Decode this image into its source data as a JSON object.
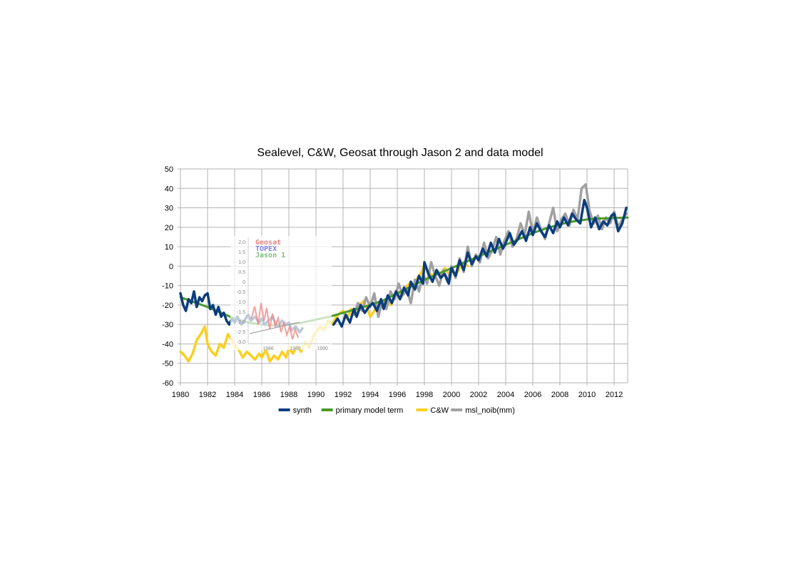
{
  "chart_data": {
    "type": "line",
    "title": "Sealevel, C&W, Geosat through Jason 2 and data model",
    "xlabel": "",
    "ylabel": "",
    "xlim": [
      1980,
      2013
    ],
    "ylim": [
      -60,
      50
    ],
    "x_ticks": [
      "1980",
      "1982",
      "1984",
      "1986",
      "1988",
      "1990",
      "1992",
      "1994",
      "1996",
      "1998",
      "2000",
      "2002",
      "2004",
      "2006",
      "2008",
      "2010",
      "2012"
    ],
    "y_ticks": [
      "50",
      "40",
      "30",
      "20",
      "10",
      "0",
      "-10",
      "-20",
      "-30",
      "-40",
      "-50",
      "-60"
    ],
    "grid": true,
    "legend_position": "bottom",
    "series": [
      {
        "name": "synth",
        "color": "#0b3d7f",
        "x": [
          1980.0,
          1980.2,
          1980.4,
          1980.6,
          1980.8,
          1981.0,
          1981.2,
          1981.4,
          1981.6,
          1981.8,
          1982.0,
          1982.2,
          1982.4,
          1982.6,
          1982.8,
          1983.0,
          1983.2,
          1983.4,
          1983.6,
          1983.8,
          1984.0,
          1984.2,
          1984.5,
          1984.8,
          1985.0,
          1985.2,
          1985.5,
          1985.8,
          1986.0,
          1986.2,
          1986.5,
          1986.8,
          1987.0,
          1987.2,
          1987.5,
          1987.8,
          1988.0,
          1988.2,
          1988.5,
          1988.8,
          1989.0
        ],
        "y": [
          -14,
          -20,
          -23,
          -17,
          -19,
          -13,
          -21,
          -16,
          -18,
          -15,
          -14,
          -22,
          -20,
          -25,
          -21,
          -26,
          -24,
          -28,
          -30,
          -27,
          -29,
          -26,
          -30,
          -27,
          -25,
          -28,
          -26,
          -29,
          -27,
          -30,
          -28,
          -26,
          -29,
          -31,
          -28,
          -30,
          -29,
          -33,
          -31,
          -34,
          -32
        ]
      },
      {
        "name": "synth",
        "color": "#0b3d7f",
        "x": [
          1991.3,
          1991.6,
          1991.9,
          1992.2,
          1992.5,
          1992.8,
          1993.0,
          1993.3,
          1993.6,
          1993.9,
          1994.2,
          1994.5,
          1994.8,
          1995.0,
          1995.3,
          1995.6,
          1995.9,
          1996.2,
          1996.5,
          1996.8,
          1997.0,
          1997.3,
          1997.6,
          1997.9,
          1998.0,
          1998.3,
          1998.6,
          1998.9,
          1999.2,
          1999.5,
          1999.8,
          2000.0,
          2000.3,
          2000.6,
          2000.9,
          2001.2,
          2001.5,
          2001.8,
          2002.0,
          2002.3,
          2002.6,
          2002.9,
          2003.2,
          2003.5,
          2003.8,
          2004.0,
          2004.3,
          2004.6,
          2004.9,
          2005.2,
          2005.5,
          2005.8,
          2006.0,
          2006.3,
          2006.6,
          2006.9,
          2007.2,
          2007.5,
          2007.8,
          2008.0,
          2008.3,
          2008.6,
          2008.9,
          2009.2,
          2009.5,
          2009.8,
          2010.0,
          2010.3,
          2010.6,
          2010.9,
          2011.2,
          2011.5,
          2011.8,
          2012.0,
          2012.3,
          2012.6,
          2012.9
        ],
        "y": [
          -30,
          -27,
          -31,
          -25,
          -29,
          -22,
          -26,
          -20,
          -24,
          -21,
          -19,
          -23,
          -17,
          -22,
          -15,
          -19,
          -13,
          -17,
          -11,
          -15,
          -8,
          -12,
          -5,
          -9,
          2,
          -4,
          -8,
          -2,
          -6,
          -4,
          -9,
          -1,
          -5,
          3,
          -2,
          7,
          1,
          5,
          3,
          9,
          5,
          12,
          7,
          14,
          9,
          12,
          17,
          11,
          14,
          18,
          13,
          20,
          16,
          22,
          18,
          15,
          21,
          17,
          23,
          20,
          25,
          21,
          27,
          24,
          22,
          34,
          30,
          20,
          25,
          19,
          23,
          21,
          26,
          27,
          18,
          22,
          30
        ]
      },
      {
        "name": "primary model term",
        "color": "#4a9a2a",
        "x": [
          1980,
          1981,
          1982,
          1983,
          1984,
          1985,
          1986,
          1987,
          1988,
          1989,
          1990,
          1991,
          1992,
          1993,
          1994,
          1995,
          1996,
          1997,
          1998,
          1999,
          2000,
          2001,
          2002,
          2003,
          2004,
          2005,
          2006,
          2007,
          2008,
          2009,
          2010,
          2011,
          2012,
          2013
        ],
        "y": [
          -16,
          -18.5,
          -21,
          -24,
          -27,
          -29,
          -30,
          -30.5,
          -30,
          -29,
          -27.5,
          -26,
          -24,
          -22,
          -20,
          -17.5,
          -14,
          -10.5,
          -7,
          -4,
          -1,
          2,
          5,
          8,
          11,
          14,
          17,
          19.5,
          21.5,
          23,
          24,
          24.5,
          24.8,
          25
        ]
      },
      {
        "name": "C&W",
        "color": "#fccf20",
        "x": [
          1980.0,
          1980.3,
          1980.6,
          1980.9,
          1981.2,
          1981.5,
          1981.8,
          1982.0,
          1982.3,
          1982.6,
          1982.9,
          1983.2,
          1983.5,
          1983.8,
          1984.0,
          1984.3,
          1984.6,
          1984.9,
          1985.2,
          1985.5,
          1985.8,
          1986.0,
          1986.3,
          1986.6,
          1986.9,
          1987.2,
          1987.5,
          1987.8,
          1988.0,
          1988.3,
          1988.6,
          1988.9,
          1989.2,
          1989.5,
          1989.8,
          1990.0,
          1990.3,
          1990.6,
          1990.9,
          1991.2,
          1991.5,
          1991.8,
          1992.0,
          1992.3,
          1992.6,
          1992.9,
          1993.2,
          1993.5,
          1993.8,
          1994.0,
          1994.3,
          1994.6,
          1994.9,
          1995.2,
          1995.5,
          1995.8,
          1996.0,
          1996.3,
          1996.6,
          1996.9,
          1997.2,
          1997.5,
          1997.8,
          1998.0,
          1998.3,
          1998.6,
          1998.9,
          1999.2,
          1999.5,
          1999.8,
          2000.0,
          2000.3,
          2000.6,
          2000.9,
          2001.2
        ],
        "y": [
          -44,
          -46,
          -49,
          -45,
          -38,
          -35,
          -31,
          -40,
          -44,
          -46,
          -40,
          -42,
          -35,
          -38,
          -41,
          -43,
          -47,
          -44,
          -46,
          -48,
          -45,
          -47,
          -43,
          -49,
          -46,
          -48,
          -44,
          -47,
          -42,
          -45,
          -41,
          -44,
          -39,
          -42,
          -36,
          -34,
          -31,
          -33,
          -28,
          -30,
          -26,
          -24,
          -23,
          -27,
          -22,
          -25,
          -20,
          -18,
          -22,
          -26,
          -23,
          -19,
          -21,
          -17,
          -20,
          -15,
          -13,
          -16,
          -11,
          -9,
          -12,
          -6,
          -3,
          1,
          -3,
          -5,
          -2,
          -4,
          -1,
          -4,
          -2,
          -5,
          -1,
          2,
          0
        ]
      },
      {
        "name": "msl_noib(mm)",
        "color": "#a0a0a0",
        "x": [
          1992.8,
          1993.1,
          1993.4,
          1993.7,
          1994.0,
          1994.3,
          1994.6,
          1994.9,
          1995.2,
          1995.5,
          1995.8,
          1996.1,
          1996.4,
          1996.7,
          1997.0,
          1997.3,
          1997.6,
          1997.9,
          1998.2,
          1998.5,
          1998.8,
          1999.1,
          1999.4,
          1999.7,
          2000.0,
          2000.3,
          2000.6,
          2000.9,
          2001.2,
          2001.5,
          2001.8,
          2002.1,
          2002.4,
          2002.7,
          2003.0,
          2003.3,
          2003.6,
          2003.9,
          2004.2,
          2004.5,
          2004.8,
          2005.1,
          2005.4,
          2005.7,
          2006.0,
          2006.3,
          2006.6,
          2006.9,
          2007.2,
          2007.5,
          2007.8,
          2008.1,
          2008.4,
          2008.7,
          2009.0,
          2009.3,
          2009.6,
          2009.9,
          2010.2,
          2010.5,
          2010.8,
          2011.1,
          2011.4,
          2011.7,
          2012.0,
          2012.3,
          2012.6,
          2012.9
        ],
        "y": [
          -25,
          -19,
          -23,
          -16,
          -21,
          -14,
          -26,
          -18,
          -22,
          -13,
          -17,
          -9,
          -15,
          -12,
          -19,
          -7,
          -13,
          -4,
          -9,
          2,
          -5,
          -10,
          -2,
          -8,
          0,
          -6,
          4,
          -3,
          10,
          0,
          6,
          2,
          12,
          4,
          8,
          15,
          6,
          13,
          18,
          10,
          14,
          22,
          16,
          28,
          17,
          25,
          19,
          14,
          22,
          30,
          18,
          24,
          27,
          21,
          29,
          24,
          40,
          42,
          28,
          22,
          26,
          19,
          25,
          22,
          28,
          20,
          24,
          27
        ]
      }
    ]
  },
  "inset": {
    "legend": [
      "Geosat",
      "TOPEX",
      "Jason 1"
    ],
    "legend_colors": [
      "#f08080",
      "#8080f0",
      "#80c080"
    ],
    "y_ticks": [
      "2.0",
      "1.5",
      "1.0",
      "0.5",
      "0",
      "-0.5",
      "-1.0",
      "-1.5",
      "-2.0",
      "-2.5",
      "-3.0"
    ],
    "x_ticks": [
      "1986",
      "1988",
      "1990"
    ],
    "note": ""
  }
}
